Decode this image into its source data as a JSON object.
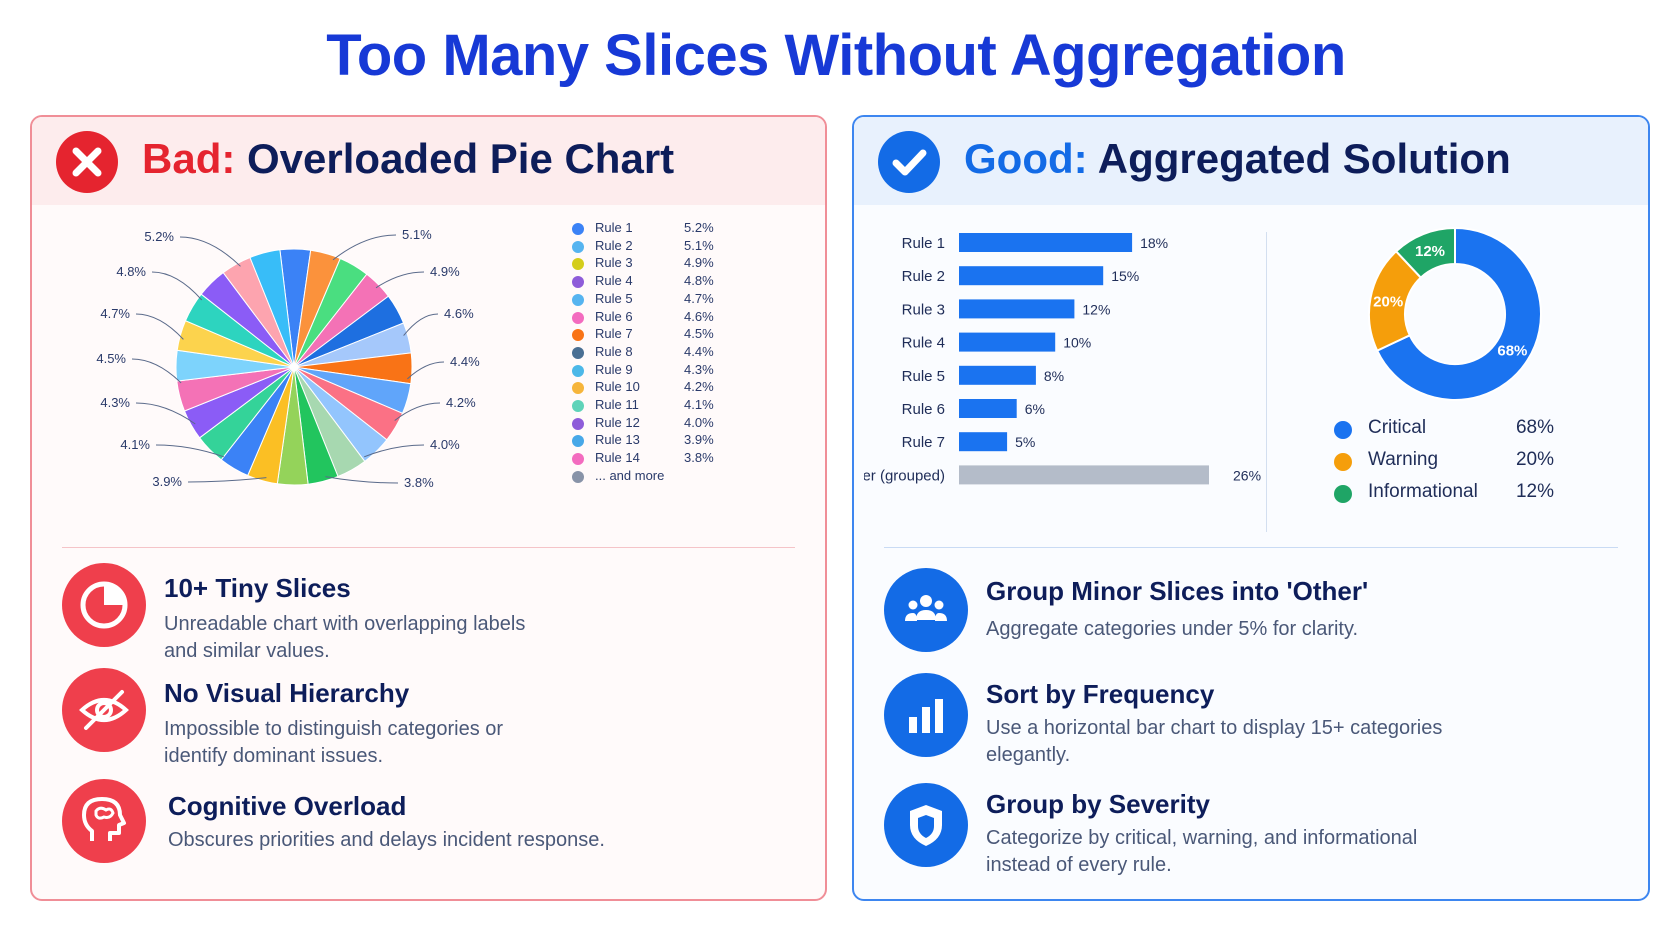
{
  "title": "Too Many Slices Without Aggregation",
  "bad": {
    "tag": "Bad:",
    "heading": "Overloaded Pie Chart",
    "legend_more": "... and more",
    "features": [
      {
        "icon": "pie-chart-icon",
        "title": "10+ Tiny Slices",
        "desc": "Unreadable chart with overlapping labels and similar values."
      },
      {
        "icon": "eye-slash-icon",
        "title": "No Visual Hierarchy",
        "desc": "Impossible to distinguish categories or identify dominant issues."
      },
      {
        "icon": "brain-head-icon",
        "title": "Cognitive Overload",
        "desc": "Obscures priorities and delays incident response."
      }
    ]
  },
  "good": {
    "tag": "Good:",
    "heading": "Aggregated Solution",
    "features": [
      {
        "icon": "group-users-icon",
        "title": "Group Minor Slices into 'Other'",
        "desc": "Aggregate categories under 5% for clarity."
      },
      {
        "icon": "bar-chart-icon",
        "title": "Sort by Frequency",
        "desc": "Use a horizontal bar chart to display 15+ categories elegantly."
      },
      {
        "icon": "shield-icon",
        "title": "Group by Severity",
        "desc": "Categorize by critical, warning, and informational instead of every rule."
      }
    ]
  },
  "colors": {
    "bad_accent": "#e5242f",
    "good_accent": "#136be6",
    "bar": "#1a73f0",
    "bar_other": "#b4bcc9",
    "critical": "#1a73f0",
    "warning": "#f59e0b",
    "informational": "#1fa566"
  },
  "chart_data": [
    {
      "type": "pie",
      "categories": [
        "Rule 1",
        "Rule 2",
        "Rule 3",
        "Rule 4",
        "Rule 5",
        "Rule 6",
        "Rule 7",
        "Rule 8",
        "Rule 9",
        "Rule 10",
        "Rule 11",
        "Rule 12",
        "Rule 13",
        "Rule 14"
      ],
      "labels": [
        "5.2%",
        "5.1%",
        "4.9%",
        "4.8%",
        "4.7%",
        "4.6%",
        "4.5%",
        "4.4%",
        "4.3%",
        "4.2%",
        "4.1%",
        "4.0%",
        "3.9%",
        "3.8%"
      ],
      "values": [
        5.2,
        5.1,
        4.9,
        4.8,
        4.7,
        4.6,
        4.5,
        4.4,
        4.3,
        4.2,
        4.1,
        4.0,
        3.9,
        3.8
      ],
      "callouts": [
        "5.1%",
        "4.9%",
        "4.6%",
        "4.4%",
        "4.2%",
        "4.0%",
        "3.8%",
        "3.9%",
        "4.1%",
        "4.3%",
        "4.5%",
        "4.7%",
        "4.8%",
        "5.2%"
      ],
      "slice_colors": [
        "#3b82f6",
        "#fb923c",
        "#4ade80",
        "#f472b6",
        "#1e6fe0",
        "#a5c8fb",
        "#f97316",
        "#60a5fa",
        "#fb7185",
        "#93c5fd",
        "#a7d8b0",
        "#22c55e",
        "#94d35a",
        "#fbbf24",
        "#3b82f6",
        "#34d399",
        "#8b5cf6",
        "#f472b6",
        "#7dd3fc",
        "#fcd34d",
        "#2dd4bf",
        "#8b5cf6",
        "#fda4af",
        "#38bdf8"
      ],
      "legend_colors": [
        "#3b82f6",
        "#56b4f0",
        "#d4cd1a",
        "#8e5cd9",
        "#56b4f0",
        "#f36bbf",
        "#f97316",
        "#4a6f93",
        "#4cb8e8",
        "#f6b53b",
        "#5fd3b9",
        "#8e5cd9",
        "#47a8e8",
        "#f36bbf"
      ]
    },
    {
      "type": "bar",
      "orientation": "horizontal",
      "categories": [
        "Rule 1",
        "Rule 2",
        "Rule 3",
        "Rule 4",
        "Rule 5",
        "Rule 6",
        "Rule 7",
        "Other (grouped)"
      ],
      "values": [
        18,
        15,
        12,
        10,
        8,
        6,
        5,
        26
      ],
      "labels": [
        "18%",
        "15%",
        "12%",
        "10%",
        "8%",
        "6%",
        "5%",
        "26%"
      ]
    },
    {
      "type": "pie",
      "variant": "donut",
      "categories": [
        "Critical",
        "Warning",
        "Informational"
      ],
      "values": [
        68,
        20,
        12
      ],
      "labels": [
        "68%",
        "20%",
        "12%"
      ]
    }
  ]
}
